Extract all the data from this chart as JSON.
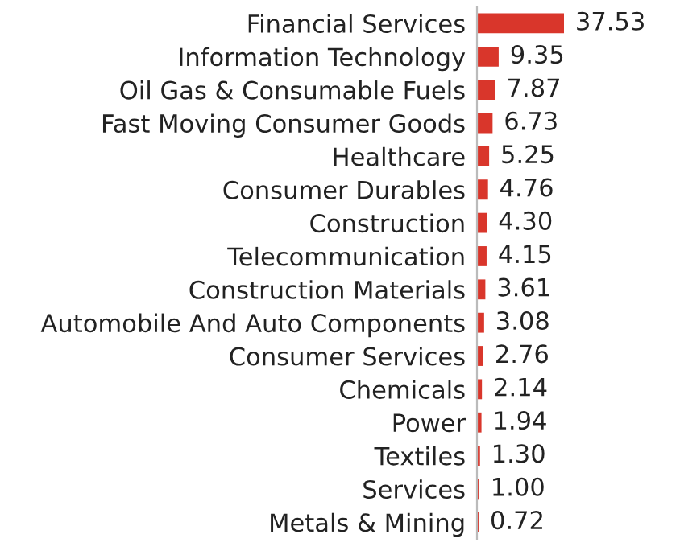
{
  "chart_data": {
    "type": "bar",
    "orientation": "horizontal",
    "data_labels": true,
    "grid": false,
    "tick_labels": "y",
    "categories": [
      "Financial Services",
      "Information Technology",
      "Oil Gas & Consumable Fuels",
      "Fast Moving Consumer Goods",
      "Healthcare",
      "Consumer Durables",
      "Construction",
      "Telecommunication",
      "Construction Materials",
      "Automobile And Auto Components",
      "Consumer Services",
      "Chemicals",
      "Power",
      "Textiles",
      "Services",
      "Metals & Mining"
    ],
    "values": [
      37.53,
      9.35,
      7.87,
      6.73,
      5.25,
      4.76,
      4.3,
      4.15,
      3.61,
      3.08,
      2.76,
      2.14,
      1.94,
      1.3,
      1.0,
      0.72
    ],
    "value_labels": [
      "37.53",
      "9.35",
      "7.87",
      "6.73",
      "5.25",
      "4.76",
      "4.30",
      "4.15",
      "3.61",
      "3.08",
      "2.76",
      "2.14",
      "1.94",
      "1.30",
      "1.00",
      "0.72"
    ],
    "color": "#d9362b"
  }
}
